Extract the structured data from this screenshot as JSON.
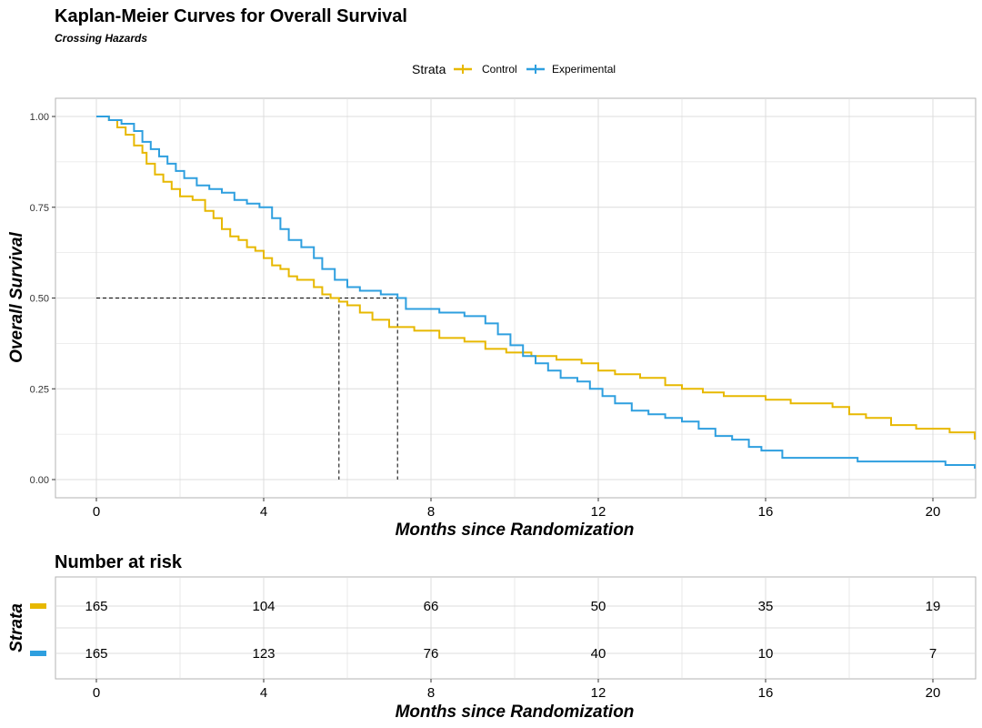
{
  "title": "Kaplan-Meier Curves for Overall Survival",
  "subtitle": "Crossing Hazards",
  "colors": {
    "control": "#E7B800",
    "experimental": "#2E9FDF",
    "grid": "#dcdcdc",
    "panel_border": "#b3b3b3"
  },
  "chart_data": {
    "type": "line",
    "title": "Kaplan-Meier Curves for Overall Survival",
    "subtitle": "Crossing Hazards",
    "xlabel": "Months since Randomization",
    "ylabel": "Overall Survival",
    "xlim": [
      0,
      21
    ],
    "ylim": [
      0,
      1
    ],
    "x_ticks": [
      0,
      4,
      8,
      12,
      16,
      20
    ],
    "x_tick_labels": [
      "0",
      "4",
      "8",
      "12",
      "16",
      "20"
    ],
    "y_ticks": [
      0,
      0.25,
      0.5,
      0.75,
      1.0
    ],
    "y_tick_labels": [
      "0.00",
      "0.25",
      "0.50",
      "0.75",
      "1.00"
    ],
    "grid": true,
    "legend": {
      "title": "Strata",
      "position": "top",
      "entries": [
        "Control",
        "Experimental"
      ]
    },
    "median_lines": [
      {
        "series": "Control",
        "x": 5.8,
        "y": 0.5
      },
      {
        "series": "Experimental",
        "x": 7.2,
        "y": 0.5
      }
    ],
    "series": [
      {
        "name": "Control",
        "color": "#E7B800",
        "x": [
          0,
          0.3,
          0.5,
          0.7,
          0.9,
          1.1,
          1.2,
          1.4,
          1.6,
          1.8,
          2.0,
          2.3,
          2.6,
          2.8,
          3.0,
          3.2,
          3.4,
          3.6,
          3.8,
          4.0,
          4.2,
          4.4,
          4.6,
          4.8,
          5.2,
          5.4,
          5.6,
          5.8,
          6.0,
          6.3,
          6.6,
          7.0,
          7.6,
          8.2,
          8.8,
          9.3,
          9.8,
          10.4,
          11.0,
          11.6,
          12.0,
          12.4,
          13.0,
          13.6,
          14.0,
          14.5,
          15.0,
          15.5,
          16.0,
          16.6,
          17.2,
          17.6,
          18.0,
          18.4,
          19.0,
          19.6,
          20.4,
          21.0
        ],
        "y": [
          1.0,
          0.99,
          0.97,
          0.95,
          0.92,
          0.9,
          0.87,
          0.84,
          0.82,
          0.8,
          0.78,
          0.77,
          0.74,
          0.72,
          0.69,
          0.67,
          0.66,
          0.64,
          0.63,
          0.61,
          0.59,
          0.58,
          0.56,
          0.55,
          0.53,
          0.51,
          0.5,
          0.49,
          0.48,
          0.46,
          0.44,
          0.42,
          0.41,
          0.39,
          0.38,
          0.36,
          0.35,
          0.34,
          0.33,
          0.32,
          0.3,
          0.29,
          0.28,
          0.26,
          0.25,
          0.24,
          0.23,
          0.23,
          0.22,
          0.21,
          0.21,
          0.2,
          0.18,
          0.17,
          0.15,
          0.14,
          0.13,
          0.11
        ]
      },
      {
        "name": "Experimental",
        "color": "#2E9FDF",
        "x": [
          0,
          0.3,
          0.6,
          0.9,
          1.1,
          1.3,
          1.5,
          1.7,
          1.9,
          2.1,
          2.4,
          2.7,
          3.0,
          3.3,
          3.6,
          3.9,
          4.2,
          4.4,
          4.6,
          4.9,
          5.2,
          5.4,
          5.7,
          6.0,
          6.3,
          6.8,
          7.2,
          7.4,
          7.8,
          8.2,
          8.8,
          9.3,
          9.6,
          9.9,
          10.2,
          10.5,
          10.8,
          11.1,
          11.5,
          11.8,
          12.1,
          12.4,
          12.8,
          13.2,
          13.6,
          14.0,
          14.4,
          14.8,
          15.2,
          15.6,
          15.9,
          16.4,
          17.0,
          17.6,
          18.2,
          19.0,
          19.8,
          20.3,
          20.6,
          21.0
        ],
        "y": [
          1.0,
          0.99,
          0.98,
          0.96,
          0.93,
          0.91,
          0.89,
          0.87,
          0.85,
          0.83,
          0.81,
          0.8,
          0.79,
          0.77,
          0.76,
          0.75,
          0.72,
          0.69,
          0.66,
          0.64,
          0.61,
          0.58,
          0.55,
          0.53,
          0.52,
          0.51,
          0.5,
          0.47,
          0.47,
          0.46,
          0.45,
          0.43,
          0.4,
          0.37,
          0.34,
          0.32,
          0.3,
          0.28,
          0.27,
          0.25,
          0.23,
          0.21,
          0.19,
          0.18,
          0.17,
          0.16,
          0.14,
          0.12,
          0.11,
          0.09,
          0.08,
          0.06,
          0.06,
          0.06,
          0.05,
          0.05,
          0.05,
          0.04,
          0.04,
          0.03
        ]
      }
    ]
  },
  "risk_table": {
    "title": "Number at risk",
    "y_label": "Strata",
    "xlabel": "Months since Randomization",
    "times": [
      "0",
      "4",
      "8",
      "12",
      "16",
      "20"
    ],
    "rows": [
      {
        "name": "Control",
        "color": "#E7B800",
        "values": [
          "165",
          "104",
          "66",
          "50",
          "35",
          "19"
        ]
      },
      {
        "name": "Experimental",
        "color": "#2E9FDF",
        "values": [
          "165",
          "123",
          "76",
          "40",
          "10",
          "7"
        ]
      }
    ]
  }
}
